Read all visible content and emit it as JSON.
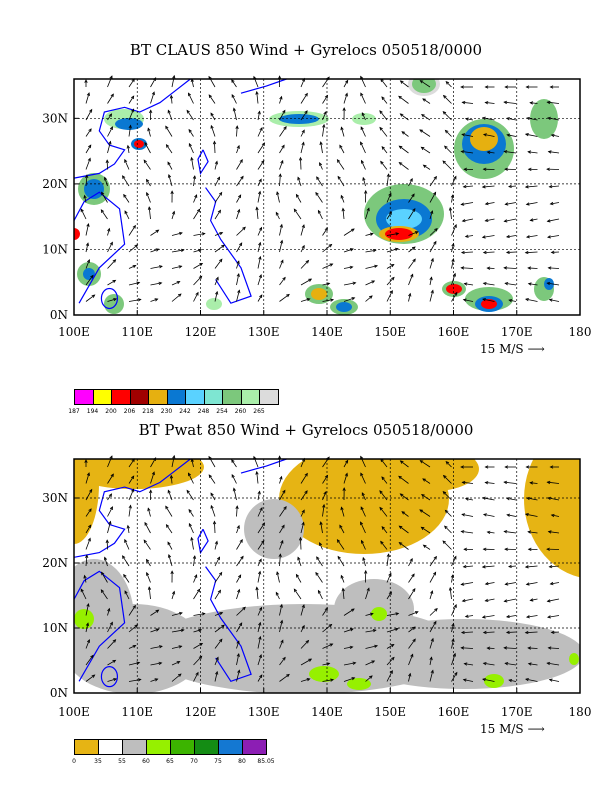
{
  "chart_data": [
    {
      "type": "heatmap",
      "title": "BT CLAUS 850 Wind + Gyrelocs 050518/0000",
      "x_ticks": [
        "100E",
        "110E",
        "120E",
        "130E",
        "140E",
        "150E",
        "160E",
        "170E",
        "180"
      ],
      "y_ticks": [
        "0N",
        "10N",
        "20N",
        "30N"
      ],
      "xlim": [
        100,
        180
      ],
      "ylim": [
        0,
        36
      ],
      "grid": true,
      "vector_scale_label": "15 M/S",
      "colorbar": {
        "labels": [
          "187",
          "194",
          "200",
          "206",
          "218",
          "230",
          "242",
          "248",
          "254",
          "260",
          "265"
        ],
        "colors": [
          "#ff00ff",
          "#ffff00",
          "#ff0000",
          "#a00000",
          "#e6b010",
          "#0a78d2",
          "#5ad2ff",
          "#7ee6d2",
          "#7cc87c",
          "#aaeeaa",
          "#dcdcdc"
        ]
      }
    },
    {
      "type": "heatmap",
      "title": "BT Pwat 850 Wind + Gyrelocs 050518/0000",
      "x_ticks": [
        "100E",
        "110E",
        "120E",
        "130E",
        "140E",
        "150E",
        "160E",
        "170E",
        "180"
      ],
      "y_ticks": [
        "0N",
        "10N",
        "20N",
        "30N"
      ],
      "xlim": [
        100,
        180
      ],
      "ylim": [
        0,
        36
      ],
      "grid": true,
      "vector_scale_label": "15 M/S",
      "colorbar": {
        "labels": [
          "0",
          "35",
          "55",
          "60",
          "65",
          "70",
          "75",
          "80",
          "85.05"
        ],
        "colors": [
          "#e6b414",
          "#ffffff",
          "#bebebe",
          "#96f000",
          "#3cb400",
          "#148c14",
          "#1478d2",
          "#8c1eb4"
        ]
      }
    }
  ]
}
